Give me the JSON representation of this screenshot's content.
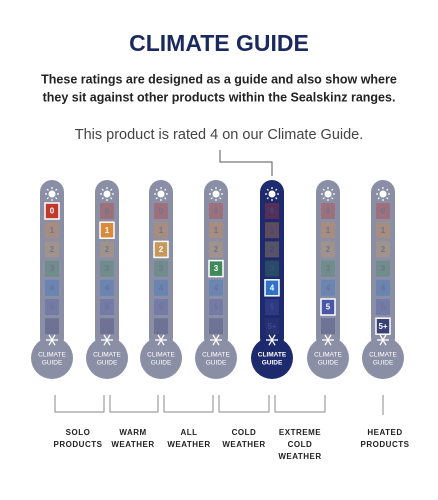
{
  "header": {
    "title": "CLIMATE GUIDE",
    "description": [
      "These ratings are designed as a guide and also show where",
      "they sit against other products within the Sealskinz ranges."
    ],
    "rating_statement": "This product is rated 4 on our Climate Guide."
  },
  "scale": {
    "levels": [
      "0",
      "1",
      "2",
      "3",
      "4",
      "5",
      "5+"
    ],
    "level_colors": [
      "#c0392b",
      "#d98a3a",
      "#c89a5a",
      "#3f8a5a",
      "#2f72c8",
      "#4a56a8",
      "#3a3f78"
    ],
    "bulb_label": [
      "CLIMATE",
      "GUIDE"
    ]
  },
  "thermometers": [
    {
      "highlight": 0,
      "active": false
    },
    {
      "highlight": 1,
      "active": false
    },
    {
      "highlight": 2,
      "active": false
    },
    {
      "highlight": 3,
      "active": false
    },
    {
      "highlight": 4,
      "active": true
    },
    {
      "highlight": 5,
      "active": false
    },
    {
      "highlight": 6,
      "active": false
    }
  ],
  "categories": [
    [
      "SOLO",
      "PRODUCTS"
    ],
    [
      "WARM",
      "WEATHER"
    ],
    [
      "ALL",
      "WEATHER"
    ],
    [
      "COLD",
      "WEATHER"
    ],
    [
      "EXTREME",
      "COLD",
      "WEATHER"
    ],
    [
      "HEATED",
      "PRODUCTS"
    ]
  ]
}
